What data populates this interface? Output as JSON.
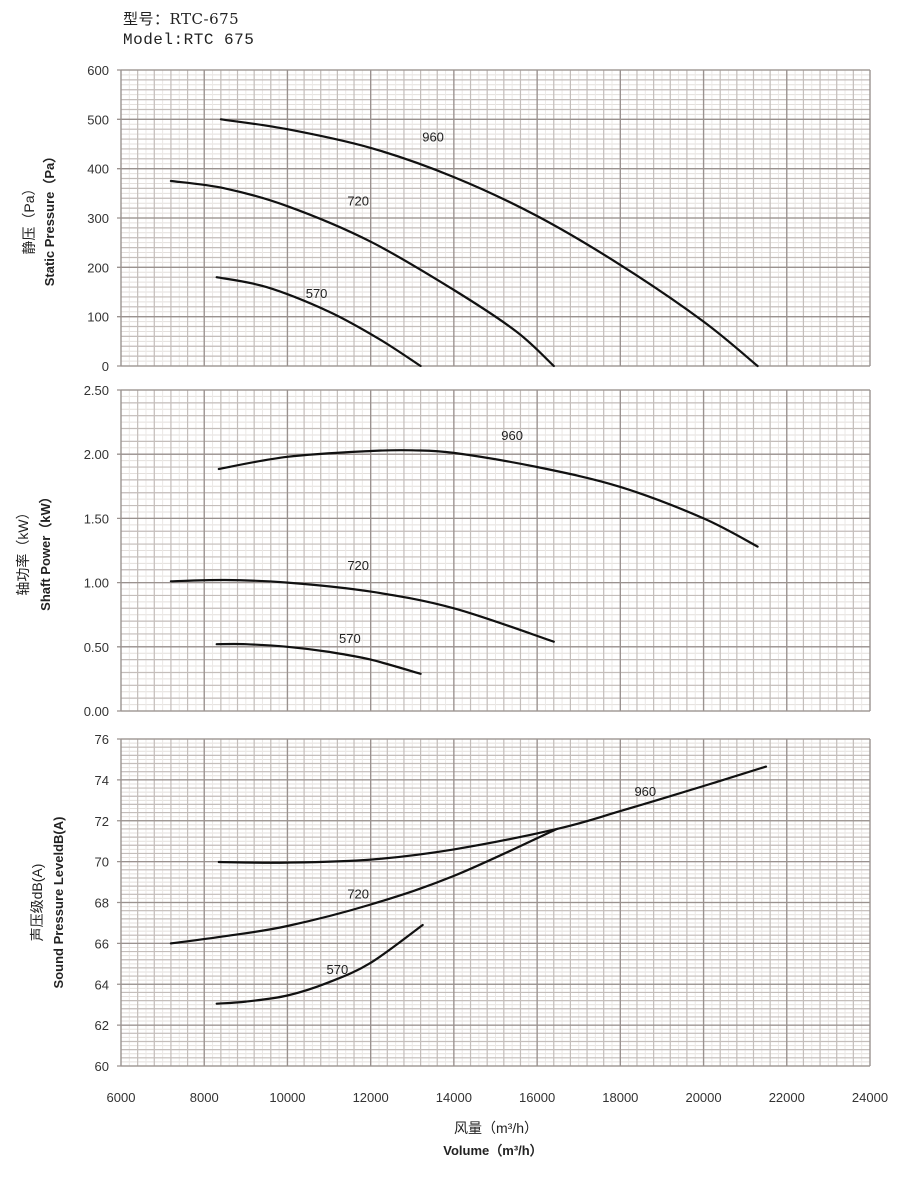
{
  "header": {
    "title_cn": "型号：RTC-675",
    "title_en": "Model:RTC 675"
  },
  "chart_data": [
    {
      "type": "line",
      "title": "",
      "ylabel_cn": "静压（Pa）",
      "ylabel": "Static Pressure（Pa）",
      "xlim": [
        6000,
        24000
      ],
      "ylim": [
        0,
        600
      ],
      "yticks": [
        "0",
        "100",
        "200",
        "300",
        "400",
        "500",
        "600"
      ],
      "ytick_values": [
        0,
        100,
        200,
        300,
        400,
        500,
        600
      ],
      "grid": true,
      "series": [
        {
          "name": "960",
          "x": [
            8400,
            10000,
            12000,
            14000,
            16000,
            18000,
            20000,
            21300
          ],
          "y": [
            500,
            480,
            442,
            383,
            304,
            205,
            90,
            0
          ]
        },
        {
          "name": "720",
          "x": [
            7200,
            8500,
            10000,
            12000,
            14000,
            15500,
            16400
          ],
          "y": [
            375,
            360,
            324,
            252,
            154,
            70,
            0
          ]
        },
        {
          "name": "570",
          "x": [
            8300,
            9500,
            11000,
            12200,
            13200
          ],
          "y": [
            180,
            160,
            110,
            55,
            0
          ]
        }
      ],
      "labels": [
        {
          "text": "960",
          "x": 13500,
          "y": 455
        },
        {
          "text": "720",
          "x": 11700,
          "y": 325
        },
        {
          "text": "570",
          "x": 10700,
          "y": 138
        }
      ]
    },
    {
      "type": "line",
      "title": "",
      "ylabel_cn": "轴功率（kW）",
      "ylabel": "Shaft Power（kW）",
      "xlim": [
        6000,
        24000
      ],
      "ylim": [
        0,
        2.5
      ],
      "yticks": [
        "0.00",
        "0.50",
        "1.00",
        "1.50",
        "2.00",
        "2.50"
      ],
      "ytick_values": [
        0,
        0.5,
        1.0,
        1.5,
        2.0,
        2.5
      ],
      "grid": true,
      "series": [
        {
          "name": "960",
          "x": [
            8350,
            10000,
            12000,
            13000,
            14000,
            16000,
            18000,
            20000,
            21300
          ],
          "y": [
            1.885,
            1.98,
            2.025,
            2.03,
            2.01,
            1.9,
            1.745,
            1.5,
            1.28
          ]
        },
        {
          "name": "720",
          "x": [
            7200,
            8500,
            10000,
            12000,
            14000,
            16400
          ],
          "y": [
            1.01,
            1.02,
            1.0,
            0.93,
            0.8,
            0.54
          ]
        },
        {
          "name": "570",
          "x": [
            8300,
            9000,
            10000,
            11000,
            12000,
            13200
          ],
          "y": [
            0.52,
            0.52,
            0.5,
            0.46,
            0.4,
            0.29
          ]
        }
      ],
      "labels": [
        {
          "text": "960",
          "x": 15400,
          "y": 2.11
        },
        {
          "text": "720",
          "x": 11700,
          "y": 1.1
        },
        {
          "text": "570",
          "x": 11500,
          "y": 0.53
        }
      ]
    },
    {
      "type": "line",
      "title": "",
      "ylabel_cn": "声压级dB(A)",
      "ylabel": "Sound Pressure LeveldB(A)",
      "xlabel_cn": "风量（m³/h）",
      "xlabel": "Volume（m³/h）",
      "xlim": [
        6000,
        24000
      ],
      "ylim": [
        60,
        76
      ],
      "xticks": [
        "6000",
        "8000",
        "10000",
        "12000",
        "14000",
        "16000",
        "18000",
        "20000",
        "22000",
        "24000"
      ],
      "xtick_values": [
        6000,
        8000,
        10000,
        12000,
        14000,
        16000,
        18000,
        20000,
        22000,
        24000
      ],
      "yticks": [
        "60",
        "62",
        "64",
        "66",
        "68",
        "70",
        "72",
        "74",
        "76"
      ],
      "ytick_values": [
        60,
        62,
        64,
        66,
        68,
        70,
        72,
        74,
        76
      ],
      "grid": true,
      "series": [
        {
          "name": "960",
          "x": [
            8350,
            10000,
            12000,
            14000,
            16480,
            18000,
            20000,
            21500
          ],
          "y": [
            69.98,
            69.95,
            70.1,
            70.6,
            71.6,
            72.47,
            73.7,
            74.65
          ]
        },
        {
          "name": "720",
          "x": [
            7200,
            8500,
            10000,
            12000,
            14000,
            16480
          ],
          "y": [
            66.0,
            66.35,
            66.85,
            67.9,
            69.3,
            71.6
          ]
        },
        {
          "name": "570",
          "x": [
            8300,
            9000,
            10000,
            11000,
            12000,
            13250
          ],
          "y": [
            63.05,
            63.15,
            63.45,
            64.1,
            65.05,
            66.9
          ]
        }
      ],
      "labels": [
        {
          "text": "960",
          "x": 18600,
          "y": 73.2
        },
        {
          "text": "720",
          "x": 11700,
          "y": 68.2
        },
        {
          "text": "570",
          "x": 11200,
          "y": 64.5
        }
      ]
    }
  ]
}
